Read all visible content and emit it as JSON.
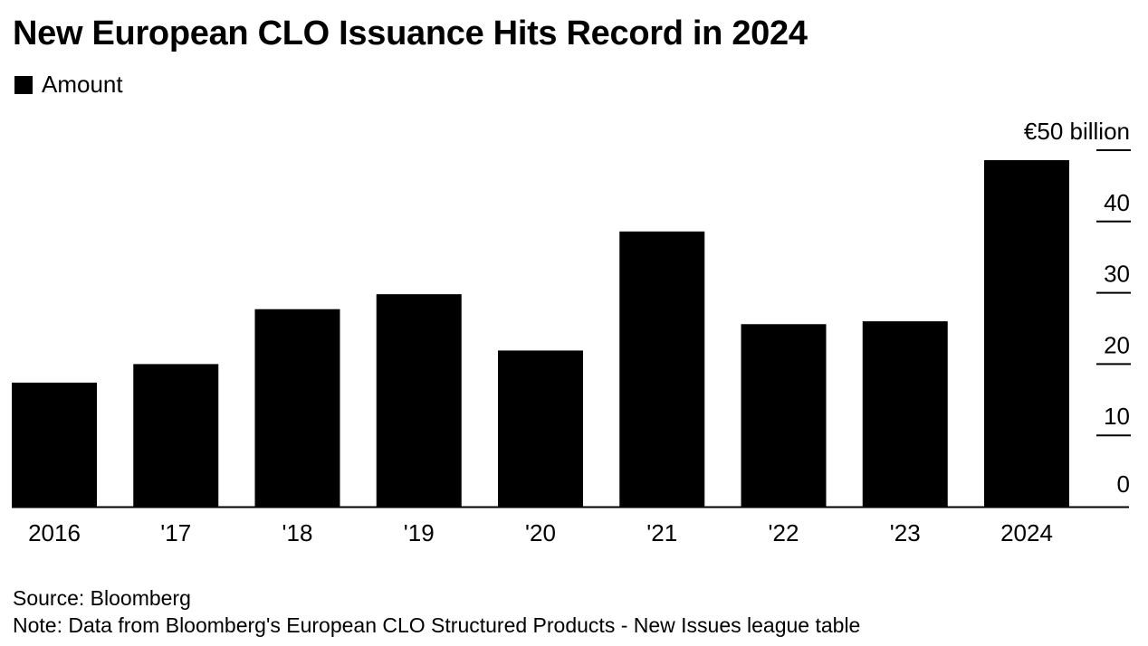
{
  "title": "New European CLO Issuance Hits Record in 2024",
  "legend": {
    "label": "Amount"
  },
  "footer": {
    "source": "Source: Bloomberg",
    "note": "Note: Data from Bloomberg's European CLO Structured Products - New Issues league table"
  },
  "colors": {
    "bar": "#000000",
    "axis": "#000000",
    "background": "#ffffff"
  },
  "chart_data": {
    "type": "bar",
    "categories": [
      "2016",
      "'17",
      "'18",
      "'19",
      "'20",
      "'21",
      "'22",
      "'23",
      "2024"
    ],
    "series": [
      {
        "name": "Amount",
        "values": [
          17.4,
          20.0,
          27.7,
          29.8,
          21.9,
          38.6,
          25.6,
          26.0,
          48.6
        ]
      }
    ],
    "ylim": [
      0,
      50
    ],
    "yticks": [
      0,
      10,
      20,
      30,
      40,
      50
    ],
    "ytick_labels": [
      "0",
      "10",
      "20",
      "30",
      "40",
      "€50 billion"
    ],
    "y_axis_position": "right",
    "grid": false
  }
}
